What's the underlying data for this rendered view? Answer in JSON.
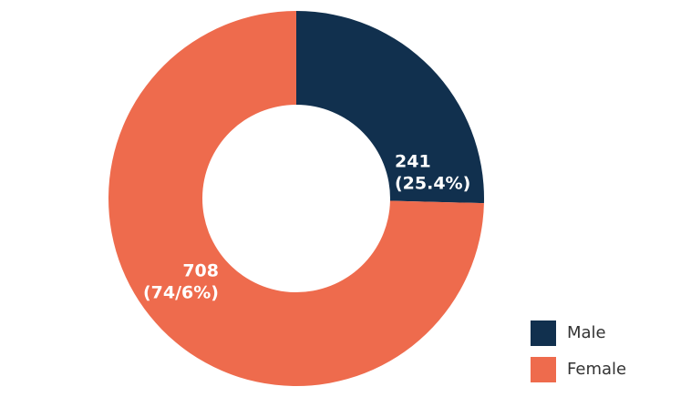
{
  "chart_data": {
    "type": "donut",
    "categories": [
      "Male",
      "Female"
    ],
    "values": [
      241,
      708
    ],
    "value_labels": [
      "241",
      "708"
    ],
    "percent_labels": [
      "(25.4%)",
      "(74/6%)"
    ],
    "colors": [
      "#11304e",
      "#ee6b4d"
    ],
    "legend": "bottom-right"
  }
}
